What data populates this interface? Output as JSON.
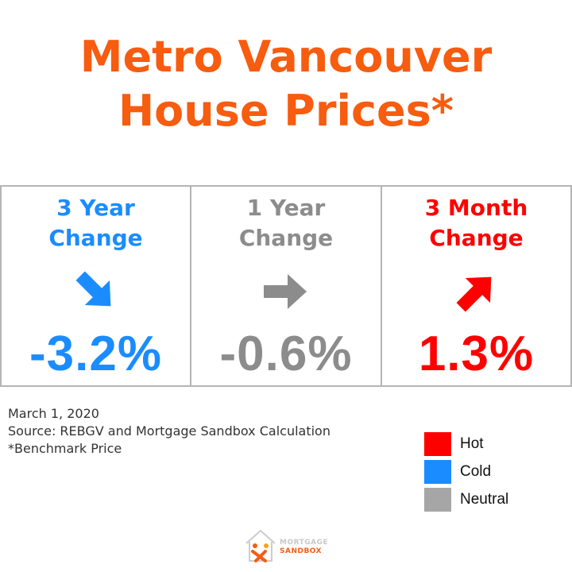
{
  "title": {
    "line1": "Metro Vancouver",
    "line2": "House Prices*"
  },
  "colors": {
    "title": "#f75c0f",
    "hot": "#ff0000",
    "cold": "#1a8cff",
    "neutral": "#8c8c8c"
  },
  "chart_data": {
    "type": "table",
    "cells": [
      {
        "label_line1": "3 Year",
        "label_line2": "Change",
        "value": "-3.2%",
        "change_pct": -3.2,
        "direction": "down",
        "status": "Cold",
        "color": "#1a8cff"
      },
      {
        "label_line1": "1 Year",
        "label_line2": "Change",
        "value": "-0.6%",
        "change_pct": -0.6,
        "direction": "flat",
        "status": "Neutral",
        "color": "#8c8c8c"
      },
      {
        "label_line1": "3 Month",
        "label_line2": "Change",
        "value": "1.3%",
        "change_pct": 1.3,
        "direction": "up",
        "status": "Hot",
        "color": "#ff0000"
      }
    ]
  },
  "notes": {
    "date": "March 1, 2020",
    "source": "Source: REBGV and Mortgage Sandbox Calculation",
    "footnote": "*Benchmark Price"
  },
  "legend": [
    {
      "label": "Hot",
      "color": "#ff0000"
    },
    {
      "label": "Cold",
      "color": "#1a8cff"
    },
    {
      "label": "Neutral",
      "color": "#a6a6a6"
    }
  ],
  "logo": {
    "line1": "MORTGAGE",
    "line2": "SANDBOX"
  }
}
